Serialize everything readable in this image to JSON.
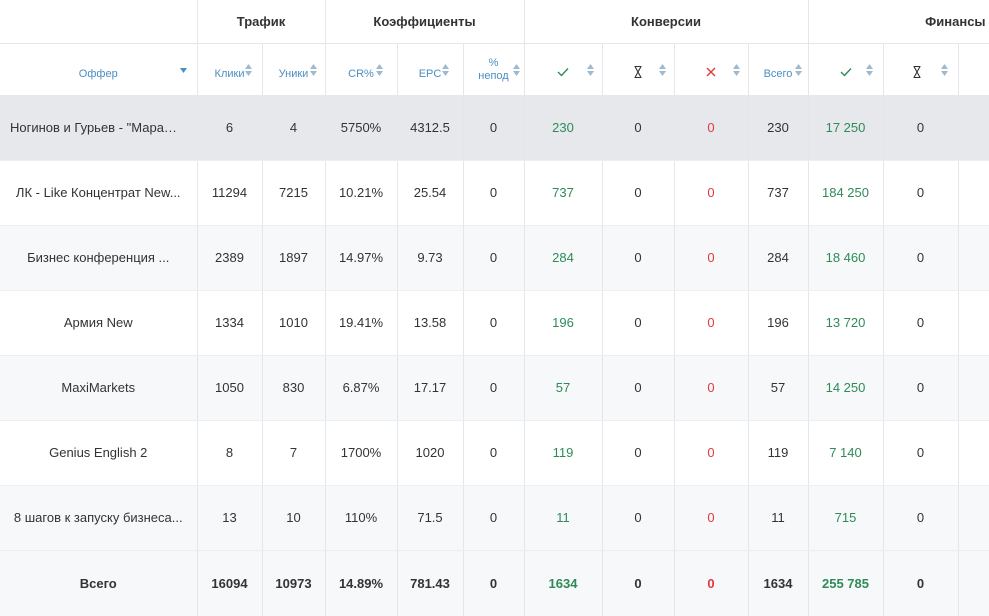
{
  "groups": {
    "traffic": "Трафик",
    "ratios": "Коэффициенты",
    "conversions": "Конверсии",
    "finance": "Финансы"
  },
  "columns": {
    "offer": "Оффер",
    "clicks": "Клики",
    "uniques": "Уники",
    "cr": "CR%",
    "epc": "EPC",
    "unconfirmed_pct": "%\nнепод",
    "total": "Всего"
  },
  "icons": {
    "approved": "check-icon",
    "pending": "hourglass-icon",
    "rejected": "cross-icon"
  },
  "colors": {
    "header_text": "#4a8ec2",
    "approved": "#2e8b57",
    "rejected": "#e0393e",
    "highlight_row": "#e6e8ec",
    "zebra_row": "#f7f8f9"
  },
  "rows": [
    {
      "offer": "Ногинов и Гурьев - \"Марафон",
      "clicks": "6",
      "uniques": "4",
      "cr": "5750%",
      "epc": "4312.5",
      "unconf": "0",
      "c_ok": "230",
      "c_wait": "0",
      "c_rej": "0",
      "c_total": "230",
      "f_ok": "17 250",
      "f_wait": "0"
    },
    {
      "offer": "ЛК - Like Концентрат New...",
      "clicks": "11294",
      "uniques": "7215",
      "cr": "10.21%",
      "epc": "25.54",
      "unconf": "0",
      "c_ok": "737",
      "c_wait": "0",
      "c_rej": "0",
      "c_total": "737",
      "f_ok": "184 250",
      "f_wait": "0"
    },
    {
      "offer": "Бизнес конференция ...",
      "clicks": "2389",
      "uniques": "1897",
      "cr": "14.97%",
      "epc": "9.73",
      "unconf": "0",
      "c_ok": "284",
      "c_wait": "0",
      "c_rej": "0",
      "c_total": "284",
      "f_ok": "18 460",
      "f_wait": "0"
    },
    {
      "offer": "Армия New",
      "clicks": "1334",
      "uniques": "1010",
      "cr": "19.41%",
      "epc": "13.58",
      "unconf": "0",
      "c_ok": "196",
      "c_wait": "0",
      "c_rej": "0",
      "c_total": "196",
      "f_ok": "13 720",
      "f_wait": "0"
    },
    {
      "offer": "MaxiMarkets",
      "clicks": "1050",
      "uniques": "830",
      "cr": "6.87%",
      "epc": "17.17",
      "unconf": "0",
      "c_ok": "57",
      "c_wait": "0",
      "c_rej": "0",
      "c_total": "57",
      "f_ok": "14 250",
      "f_wait": "0"
    },
    {
      "offer": "Genius English 2",
      "clicks": "8",
      "uniques": "7",
      "cr": "1700%",
      "epc": "1020",
      "unconf": "0",
      "c_ok": "119",
      "c_wait": "0",
      "c_rej": "0",
      "c_total": "119",
      "f_ok": "7 140",
      "f_wait": "0"
    },
    {
      "offer": "8 шагов к запуску бизнеса...",
      "clicks": "13",
      "uniques": "10",
      "cr": "110%",
      "epc": "71.5",
      "unconf": "0",
      "c_ok": "11",
      "c_wait": "0",
      "c_rej": "0",
      "c_total": "11",
      "f_ok": "715",
      "f_wait": "0"
    }
  ],
  "totals": {
    "label": "Всего",
    "clicks": "16094",
    "uniques": "10973",
    "cr": "14.89%",
    "epc": "781.43",
    "unconf": "0",
    "c_ok": "1634",
    "c_wait": "0",
    "c_rej": "0",
    "c_total": "1634",
    "f_ok": "255 785",
    "f_wait": "0"
  }
}
